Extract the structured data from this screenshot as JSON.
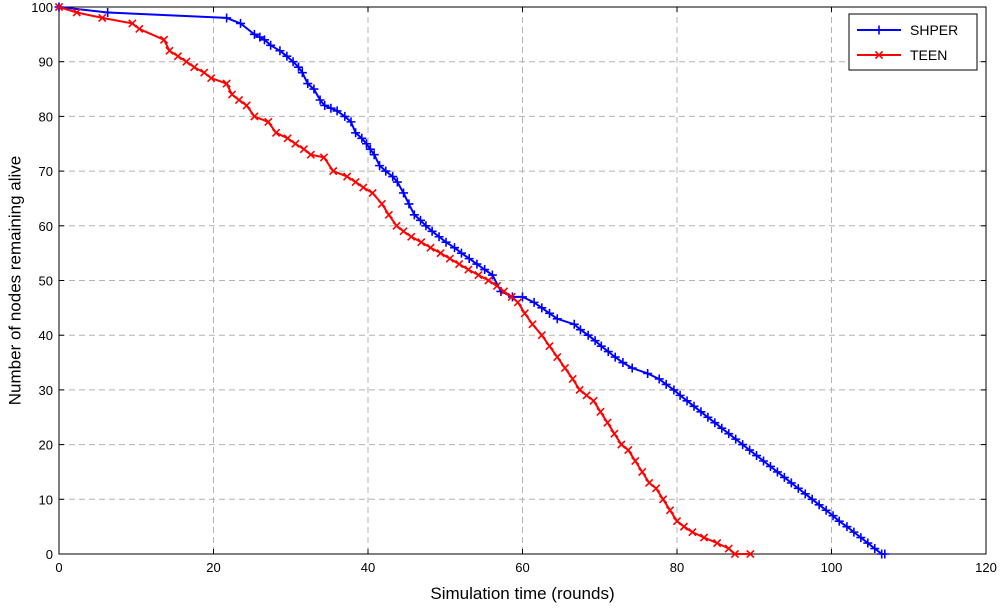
{
  "chart_data": {
    "type": "line",
    "title": "",
    "xlabel": "Simulation time (rounds)",
    "ylabel": "Number of nodes remaining alive",
    "xlim": [
      0,
      120
    ],
    "ylim": [
      0,
      100
    ],
    "xticks": [
      0,
      20,
      40,
      60,
      80,
      100,
      120
    ],
    "yticks": [
      0,
      10,
      20,
      30,
      40,
      50,
      60,
      70,
      80,
      90,
      100
    ],
    "x_tick_labels": [
      "0",
      "20",
      "40",
      "60",
      "80",
      "100",
      "120"
    ],
    "y_tick_labels": [
      "0",
      "10",
      "20",
      "30",
      "40",
      "50",
      "60",
      "70",
      "80",
      "90",
      "100"
    ],
    "grid": true,
    "legend_position": "top-right",
    "series": [
      {
        "name": "SHPER",
        "color": "#0000ff",
        "marker": "plus",
        "points": [
          [
            0,
            100
          ],
          [
            6.3,
            99
          ],
          [
            21.7,
            98
          ],
          [
            23.5,
            97
          ],
          [
            25.3,
            95
          ],
          [
            26,
            94.5
          ],
          [
            26.6,
            94
          ],
          [
            27.4,
            93
          ],
          [
            28.6,
            92
          ],
          [
            29.5,
            91
          ],
          [
            30.3,
            90
          ],
          [
            31,
            89
          ],
          [
            31.5,
            88
          ],
          [
            32.2,
            86
          ],
          [
            33,
            85
          ],
          [
            33.8,
            83
          ],
          [
            34.4,
            82
          ],
          [
            35.2,
            81.5
          ],
          [
            36,
            81
          ],
          [
            37,
            80
          ],
          [
            37.8,
            79
          ],
          [
            38.4,
            77
          ],
          [
            39.2,
            76
          ],
          [
            39.8,
            75
          ],
          [
            40.3,
            74
          ],
          [
            40.8,
            73
          ],
          [
            41.5,
            71
          ],
          [
            42.3,
            70
          ],
          [
            43.2,
            69
          ],
          [
            43.8,
            68
          ],
          [
            44.6,
            66
          ],
          [
            45.3,
            64
          ],
          [
            46,
            62
          ],
          [
            46.8,
            61
          ],
          [
            47.5,
            60
          ],
          [
            48.3,
            59
          ],
          [
            49.2,
            58
          ],
          [
            50.1,
            57
          ],
          [
            51.2,
            56
          ],
          [
            52.1,
            55
          ],
          [
            53.1,
            54
          ],
          [
            54.1,
            53
          ],
          [
            55.1,
            52
          ],
          [
            56.1,
            51
          ],
          [
            57.2,
            48
          ],
          [
            58.7,
            47
          ],
          [
            60,
            47
          ],
          [
            61.5,
            46
          ],
          [
            62.5,
            45
          ],
          [
            63.5,
            44
          ],
          [
            64.5,
            43
          ],
          [
            66.7,
            42
          ],
          [
            67.5,
            41
          ],
          [
            68.5,
            40
          ],
          [
            69.4,
            39
          ],
          [
            70.2,
            38
          ],
          [
            71.1,
            37
          ],
          [
            72,
            36
          ],
          [
            73,
            35
          ],
          [
            74.2,
            34
          ],
          [
            76.2,
            33
          ],
          [
            77.7,
            32
          ],
          [
            78.6,
            31
          ],
          [
            79.6,
            30
          ],
          [
            80.4,
            29
          ],
          [
            81.3,
            28
          ],
          [
            82.2,
            27
          ],
          [
            83.1,
            26
          ],
          [
            84,
            25
          ],
          [
            84.9,
            24
          ],
          [
            85.8,
            23
          ],
          [
            86.7,
            22
          ],
          [
            87.6,
            21
          ],
          [
            88.5,
            20
          ],
          [
            89.4,
            19
          ],
          [
            90.3,
            18
          ],
          [
            91.2,
            17
          ],
          [
            92.1,
            16
          ],
          [
            93,
            15
          ],
          [
            93.9,
            14
          ],
          [
            94.8,
            13
          ],
          [
            95.7,
            12
          ],
          [
            96.6,
            11
          ],
          [
            97.5,
            10
          ],
          [
            98.4,
            9
          ],
          [
            99.3,
            8
          ],
          [
            100.2,
            7
          ],
          [
            101,
            6
          ],
          [
            102,
            5
          ],
          [
            102.9,
            4
          ],
          [
            103.8,
            3
          ],
          [
            104.7,
            2
          ],
          [
            105.6,
            1
          ],
          [
            106.5,
            0
          ],
          [
            106.9,
            0
          ]
        ]
      },
      {
        "name": "TEEN",
        "color": "#ff0000",
        "marker": "x",
        "points": [
          [
            0,
            100
          ],
          [
            2.3,
            99
          ],
          [
            5.6,
            98
          ],
          [
            9.5,
            97
          ],
          [
            10.4,
            96
          ],
          [
            13.6,
            94
          ],
          [
            14.3,
            92
          ],
          [
            15.4,
            91
          ],
          [
            16.5,
            90
          ],
          [
            17.5,
            89
          ],
          [
            18.8,
            88
          ],
          [
            19.7,
            87
          ],
          [
            21.7,
            86
          ],
          [
            22.4,
            84
          ],
          [
            23.3,
            83
          ],
          [
            24.3,
            82
          ],
          [
            25.3,
            80
          ],
          [
            27.1,
            79
          ],
          [
            28.1,
            77
          ],
          [
            29.6,
            76
          ],
          [
            30.6,
            75
          ],
          [
            31.7,
            74
          ],
          [
            32.6,
            73
          ],
          [
            34.3,
            72.5
          ],
          [
            35.5,
            70
          ],
          [
            37.3,
            69
          ],
          [
            38.4,
            68
          ],
          [
            39.4,
            67
          ],
          [
            40.6,
            66
          ],
          [
            41.8,
            64
          ],
          [
            42.7,
            62
          ],
          [
            43.7,
            60
          ],
          [
            44.6,
            59
          ],
          [
            45.6,
            58
          ],
          [
            46.9,
            57
          ],
          [
            48.1,
            56
          ],
          [
            49.4,
            55
          ],
          [
            50.6,
            54
          ],
          [
            51.8,
            53
          ],
          [
            53,
            52
          ],
          [
            54.3,
            51
          ],
          [
            55.6,
            50
          ],
          [
            56.7,
            49
          ],
          [
            57.6,
            48
          ],
          [
            58.6,
            47
          ],
          [
            59.4,
            46
          ],
          [
            60.3,
            44
          ],
          [
            61.3,
            42
          ],
          [
            62.5,
            40
          ],
          [
            63.5,
            38
          ],
          [
            64.5,
            36
          ],
          [
            65.5,
            34
          ],
          [
            66.5,
            32
          ],
          [
            67.4,
            30
          ],
          [
            68.3,
            29
          ],
          [
            69.2,
            28
          ],
          [
            70.1,
            26
          ],
          [
            71,
            24
          ],
          [
            71.9,
            22
          ],
          [
            72.8,
            20
          ],
          [
            73.7,
            19
          ],
          [
            74.6,
            17
          ],
          [
            75.5,
            15
          ],
          [
            76.4,
            13
          ],
          [
            77.3,
            12
          ],
          [
            78.2,
            10
          ],
          [
            79.1,
            8
          ],
          [
            80,
            6
          ],
          [
            80.9,
            5
          ],
          [
            82,
            4
          ],
          [
            83.5,
            3
          ],
          [
            85.2,
            2
          ],
          [
            86.7,
            1
          ],
          [
            87.5,
            0
          ],
          [
            89.5,
            0
          ]
        ]
      }
    ]
  }
}
